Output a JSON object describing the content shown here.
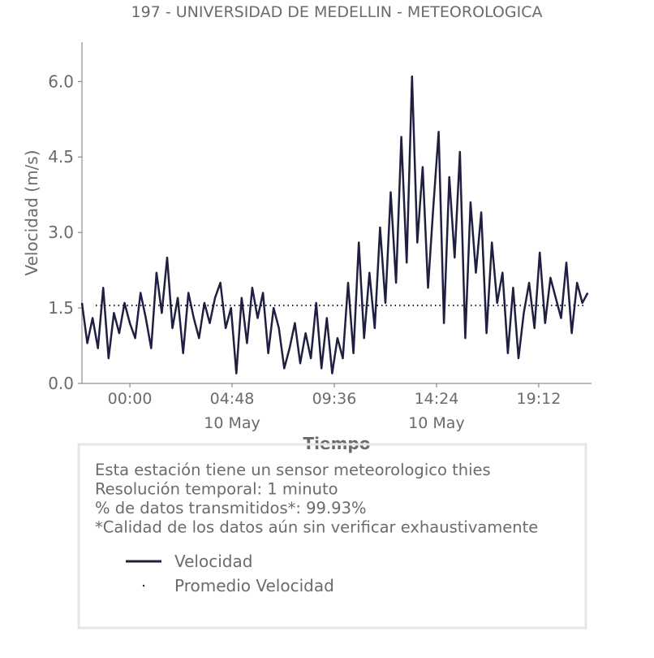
{
  "chart_data": {
    "type": "line",
    "title": "197 - UNIVERSIDAD DE MEDELLIN - METEOROLOGICA",
    "xlabel": "Tiempo",
    "ylabel": "Velocidad (m/s)",
    "xlim": [
      -2.25,
      21.68
    ],
    "ylim": [
      0,
      6.78
    ],
    "xticks": [
      {
        "value": 0,
        "label": "00:00"
      },
      {
        "value": 4.8,
        "label": "04:48",
        "date": "10 May"
      },
      {
        "value": 9.6,
        "label": "09:36"
      },
      {
        "value": 14.4,
        "label": "14:24",
        "date": "10 May"
      },
      {
        "value": 19.2,
        "label": "19:12"
      }
    ],
    "yticks": [
      {
        "value": 0,
        "label": "0.0"
      },
      {
        "value": 1.5,
        "label": "1.5"
      },
      {
        "value": 3,
        "label": "3.0"
      },
      {
        "value": 4.5,
        "label": "4.5"
      },
      {
        "value": 6,
        "label": "6.0"
      }
    ],
    "x": [
      -2.25,
      -2.0,
      -1.75,
      -1.5,
      -1.25,
      -1.0,
      -0.75,
      -0.5,
      -0.25,
      0.0,
      0.25,
      0.5,
      0.75,
      1.0,
      1.25,
      1.5,
      1.75,
      2.0,
      2.25,
      2.5,
      2.75,
      3.0,
      3.25,
      3.5,
      3.75,
      4.0,
      4.25,
      4.5,
      4.75,
      5.0,
      5.25,
      5.5,
      5.75,
      6.0,
      6.25,
      6.5,
      6.75,
      7.0,
      7.25,
      7.5,
      7.75,
      8.0,
      8.25,
      8.5,
      8.75,
      9.0,
      9.25,
      9.5,
      9.75,
      10.0,
      10.25,
      10.5,
      10.75,
      11.0,
      11.25,
      11.5,
      11.75,
      12.0,
      12.25,
      12.5,
      12.75,
      13.0,
      13.25,
      13.5,
      13.75,
      14.0,
      14.25,
      14.5,
      14.75,
      15.0,
      15.25,
      15.5,
      15.75,
      16.0,
      16.25,
      16.5,
      16.75,
      17.0,
      17.25,
      17.5,
      17.75,
      18.0,
      18.25,
      18.5,
      18.75,
      19.0,
      19.25,
      19.5,
      19.75,
      20.0,
      20.25,
      20.5,
      20.75,
      21.0,
      21.25,
      21.5
    ],
    "series": [
      {
        "name": "Velocidad",
        "color": "#1f2041",
        "values": [
          1.6,
          0.8,
          1.3,
          0.7,
          1.9,
          0.5,
          1.4,
          1.0,
          1.6,
          1.2,
          0.9,
          1.8,
          1.3,
          0.7,
          2.2,
          1.4,
          2.5,
          1.1,
          1.7,
          0.6,
          1.8,
          1.3,
          0.9,
          1.6,
          1.2,
          1.7,
          2.0,
          1.1,
          1.5,
          0.2,
          1.7,
          0.8,
          1.9,
          1.3,
          1.8,
          0.6,
          1.5,
          1.1,
          0.3,
          0.7,
          1.2,
          0.4,
          1.0,
          0.5,
          1.6,
          0.3,
          1.3,
          0.2,
          0.9,
          0.5,
          2.0,
          0.6,
          2.8,
          0.9,
          2.2,
          1.1,
          3.1,
          1.6,
          3.8,
          2.0,
          4.9,
          2.4,
          6.1,
          2.8,
          4.3,
          1.9,
          3.5,
          5.0,
          1.2,
          4.1,
          2.5,
          4.6,
          0.9,
          3.6,
          2.2,
          3.4,
          1.0,
          2.8,
          1.6,
          2.2,
          0.6,
          1.9,
          0.5,
          1.4,
          2.0,
          1.1,
          2.6,
          1.2,
          2.1,
          1.7,
          1.3,
          2.4,
          1.0,
          2.0,
          1.6,
          1.8
        ]
      }
    ],
    "mean": {
      "name": "Promedio Velocidad",
      "value": 1.55,
      "color": "#1f2041"
    },
    "notes": [
      "Esta estación tiene un sensor meteorologico thies",
      "Resolución temporal: 1 minuto",
      "% de datos transmitidos*: 99.93%",
      "*Calidad de los datos aún sin verificar exhaustivamente"
    ]
  }
}
